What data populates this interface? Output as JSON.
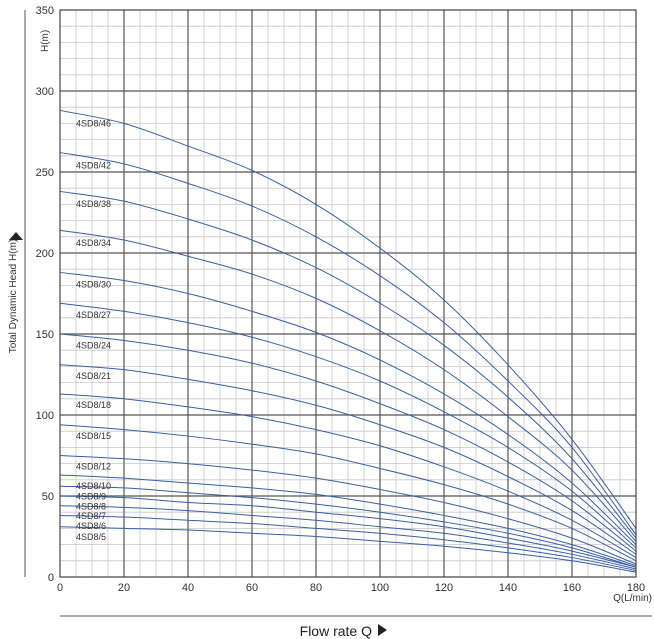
{
  "chart_data": {
    "type": "line",
    "ylabel_top": "H(m)",
    "ylabel": "Total Dynamic Head H(m)",
    "xlabel_right": "Q(L/min)",
    "xlabel": "Flow  rate Q",
    "xlim": [
      0,
      180
    ],
    "ylim": [
      0,
      350
    ],
    "x_ticks": [
      "0",
      "20",
      "40",
      "60",
      "80",
      "100",
      "120",
      "140",
      "160",
      "180"
    ],
    "y_ticks": [
      "0",
      "50",
      "100",
      "150",
      "200",
      "250",
      "300",
      "350"
    ],
    "x_major_step": 20,
    "x_minor_step": 5,
    "y_major_step": 50,
    "y_minor_step": 10,
    "grid": true,
    "line_color": "#3a5ea6",
    "x": [
      0,
      20,
      40,
      60,
      80,
      100,
      120,
      140,
      160,
      180
    ],
    "series": [
      {
        "name": "4SD8/46",
        "values": [
          288,
          280,
          266,
          251,
          230,
          203,
          171,
          131,
          85,
          30
        ]
      },
      {
        "name": "4SD8/42",
        "values": [
          262,
          255,
          243,
          229,
          210,
          186,
          157,
          121,
          80,
          26
        ]
      },
      {
        "name": "4SD8/38",
        "values": [
          238,
          232,
          221,
          208,
          191,
          169,
          143,
          111,
          73,
          24
        ]
      },
      {
        "name": "4SD8/34",
        "values": [
          214,
          208,
          198,
          187,
          172,
          152,
          128,
          99,
          66,
          22
        ]
      },
      {
        "name": "4SD8/30",
        "values": [
          188,
          183,
          175,
          164,
          151,
          134,
          113,
          88,
          58,
          20
        ]
      },
      {
        "name": "4SD8/27",
        "values": [
          169,
          164,
          157,
          148,
          136,
          121,
          102,
          80,
          53,
          18
        ]
      },
      {
        "name": "4SD8/24",
        "values": [
          150,
          146,
          140,
          132,
          121,
          107,
          91,
          71,
          47,
          16
        ]
      },
      {
        "name": "4SD8/21",
        "values": [
          131,
          128,
          122,
          115,
          106,
          94,
          80,
          62,
          41,
          14
        ]
      },
      {
        "name": "4SD8/18",
        "values": [
          113,
          110,
          105,
          99,
          91,
          81,
          68,
          53,
          35,
          12
        ]
      },
      {
        "name": "4SD8/15",
        "values": [
          94,
          91,
          87,
          82,
          76,
          67,
          57,
          45,
          30,
          10
        ]
      },
      {
        "name": "4SD8/12",
        "values": [
          75,
          73,
          70,
          66,
          61,
          54,
          46,
          36,
          24,
          8
        ]
      },
      {
        "name": "4SD8/10",
        "values": [
          63,
          61,
          58,
          55,
          51,
          45,
          38,
          30,
          20,
          7
        ]
      },
      {
        "name": "4SD8/9",
        "values": [
          56,
          55,
          52,
          49,
          45,
          40,
          34,
          27,
          18,
          6
        ]
      },
      {
        "name": "4SD8/8",
        "values": [
          50,
          49,
          46,
          44,
          40,
          36,
          31,
          24,
          16,
          6
        ]
      },
      {
        "name": "4SD8/7",
        "values": [
          44,
          43,
          41,
          38,
          35,
          31,
          27,
          21,
          14,
          5
        ]
      },
      {
        "name": "4SD8/6",
        "values": [
          38,
          37,
          35,
          33,
          30,
          27,
          23,
          18,
          12,
          4
        ]
      },
      {
        "name": "4SD8/5",
        "values": [
          31,
          30,
          29,
          27,
          25,
          22,
          19,
          15,
          10,
          3
        ]
      }
    ]
  }
}
